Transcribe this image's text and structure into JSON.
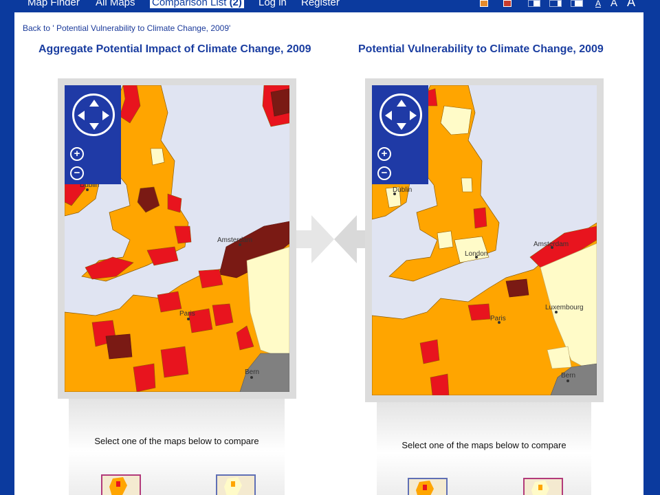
{
  "nav": {
    "items": [
      "Map Finder",
      "All Maps",
      "Comparison List",
      "Log in",
      "Register"
    ],
    "comparison_count": "(2)",
    "font_sizes": [
      "A",
      "A",
      "A"
    ]
  },
  "page": {
    "back_link": "Back to ' Potential Vulnerability to Climate Change, 2009'"
  },
  "maps": [
    {
      "title": "Aggregate Potential Impact of Climate Change, 2009",
      "labels": [
        "Dublin",
        "Amsterdam",
        "Paris",
        "Bern"
      ],
      "select_prompt": "Select one of the maps below to compare"
    },
    {
      "title": "Potential Vulnerability to Climate Change, 2009",
      "labels": [
        "Dublin",
        "Amsterdam",
        "London",
        "Paris",
        "Luxembourg",
        "Bern"
      ],
      "select_prompt": "Select one of the maps below to compare"
    }
  ],
  "colors": {
    "sea": "#e0e4f2",
    "low": "#fffbc8",
    "medium": "#ffa500",
    "high": "#e8141e",
    "very_high": "#7a1a14",
    "no_data": "#808080",
    "controls": "#1f3aa6"
  }
}
